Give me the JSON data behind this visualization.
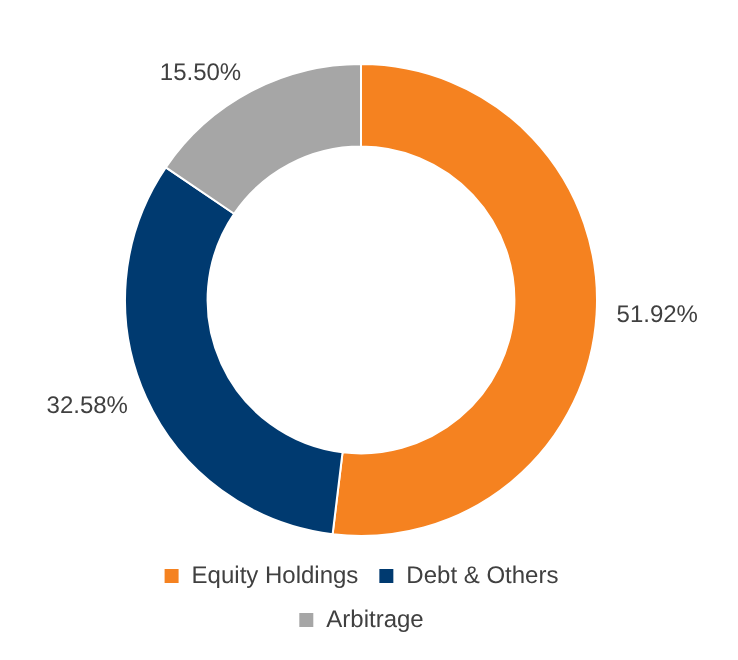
{
  "chart_data": {
    "type": "donut",
    "categories": [
      "Equity Holdings",
      "Debt & Others",
      "Arbitrage"
    ],
    "values": [
      51.92,
      32.58,
      15.5
    ],
    "colors": [
      "#f58220",
      "#003a70",
      "#a6a6a6"
    ],
    "value_labels": [
      "51.92%",
      "32.58%",
      "15.50%"
    ],
    "legend": "bottom"
  }
}
